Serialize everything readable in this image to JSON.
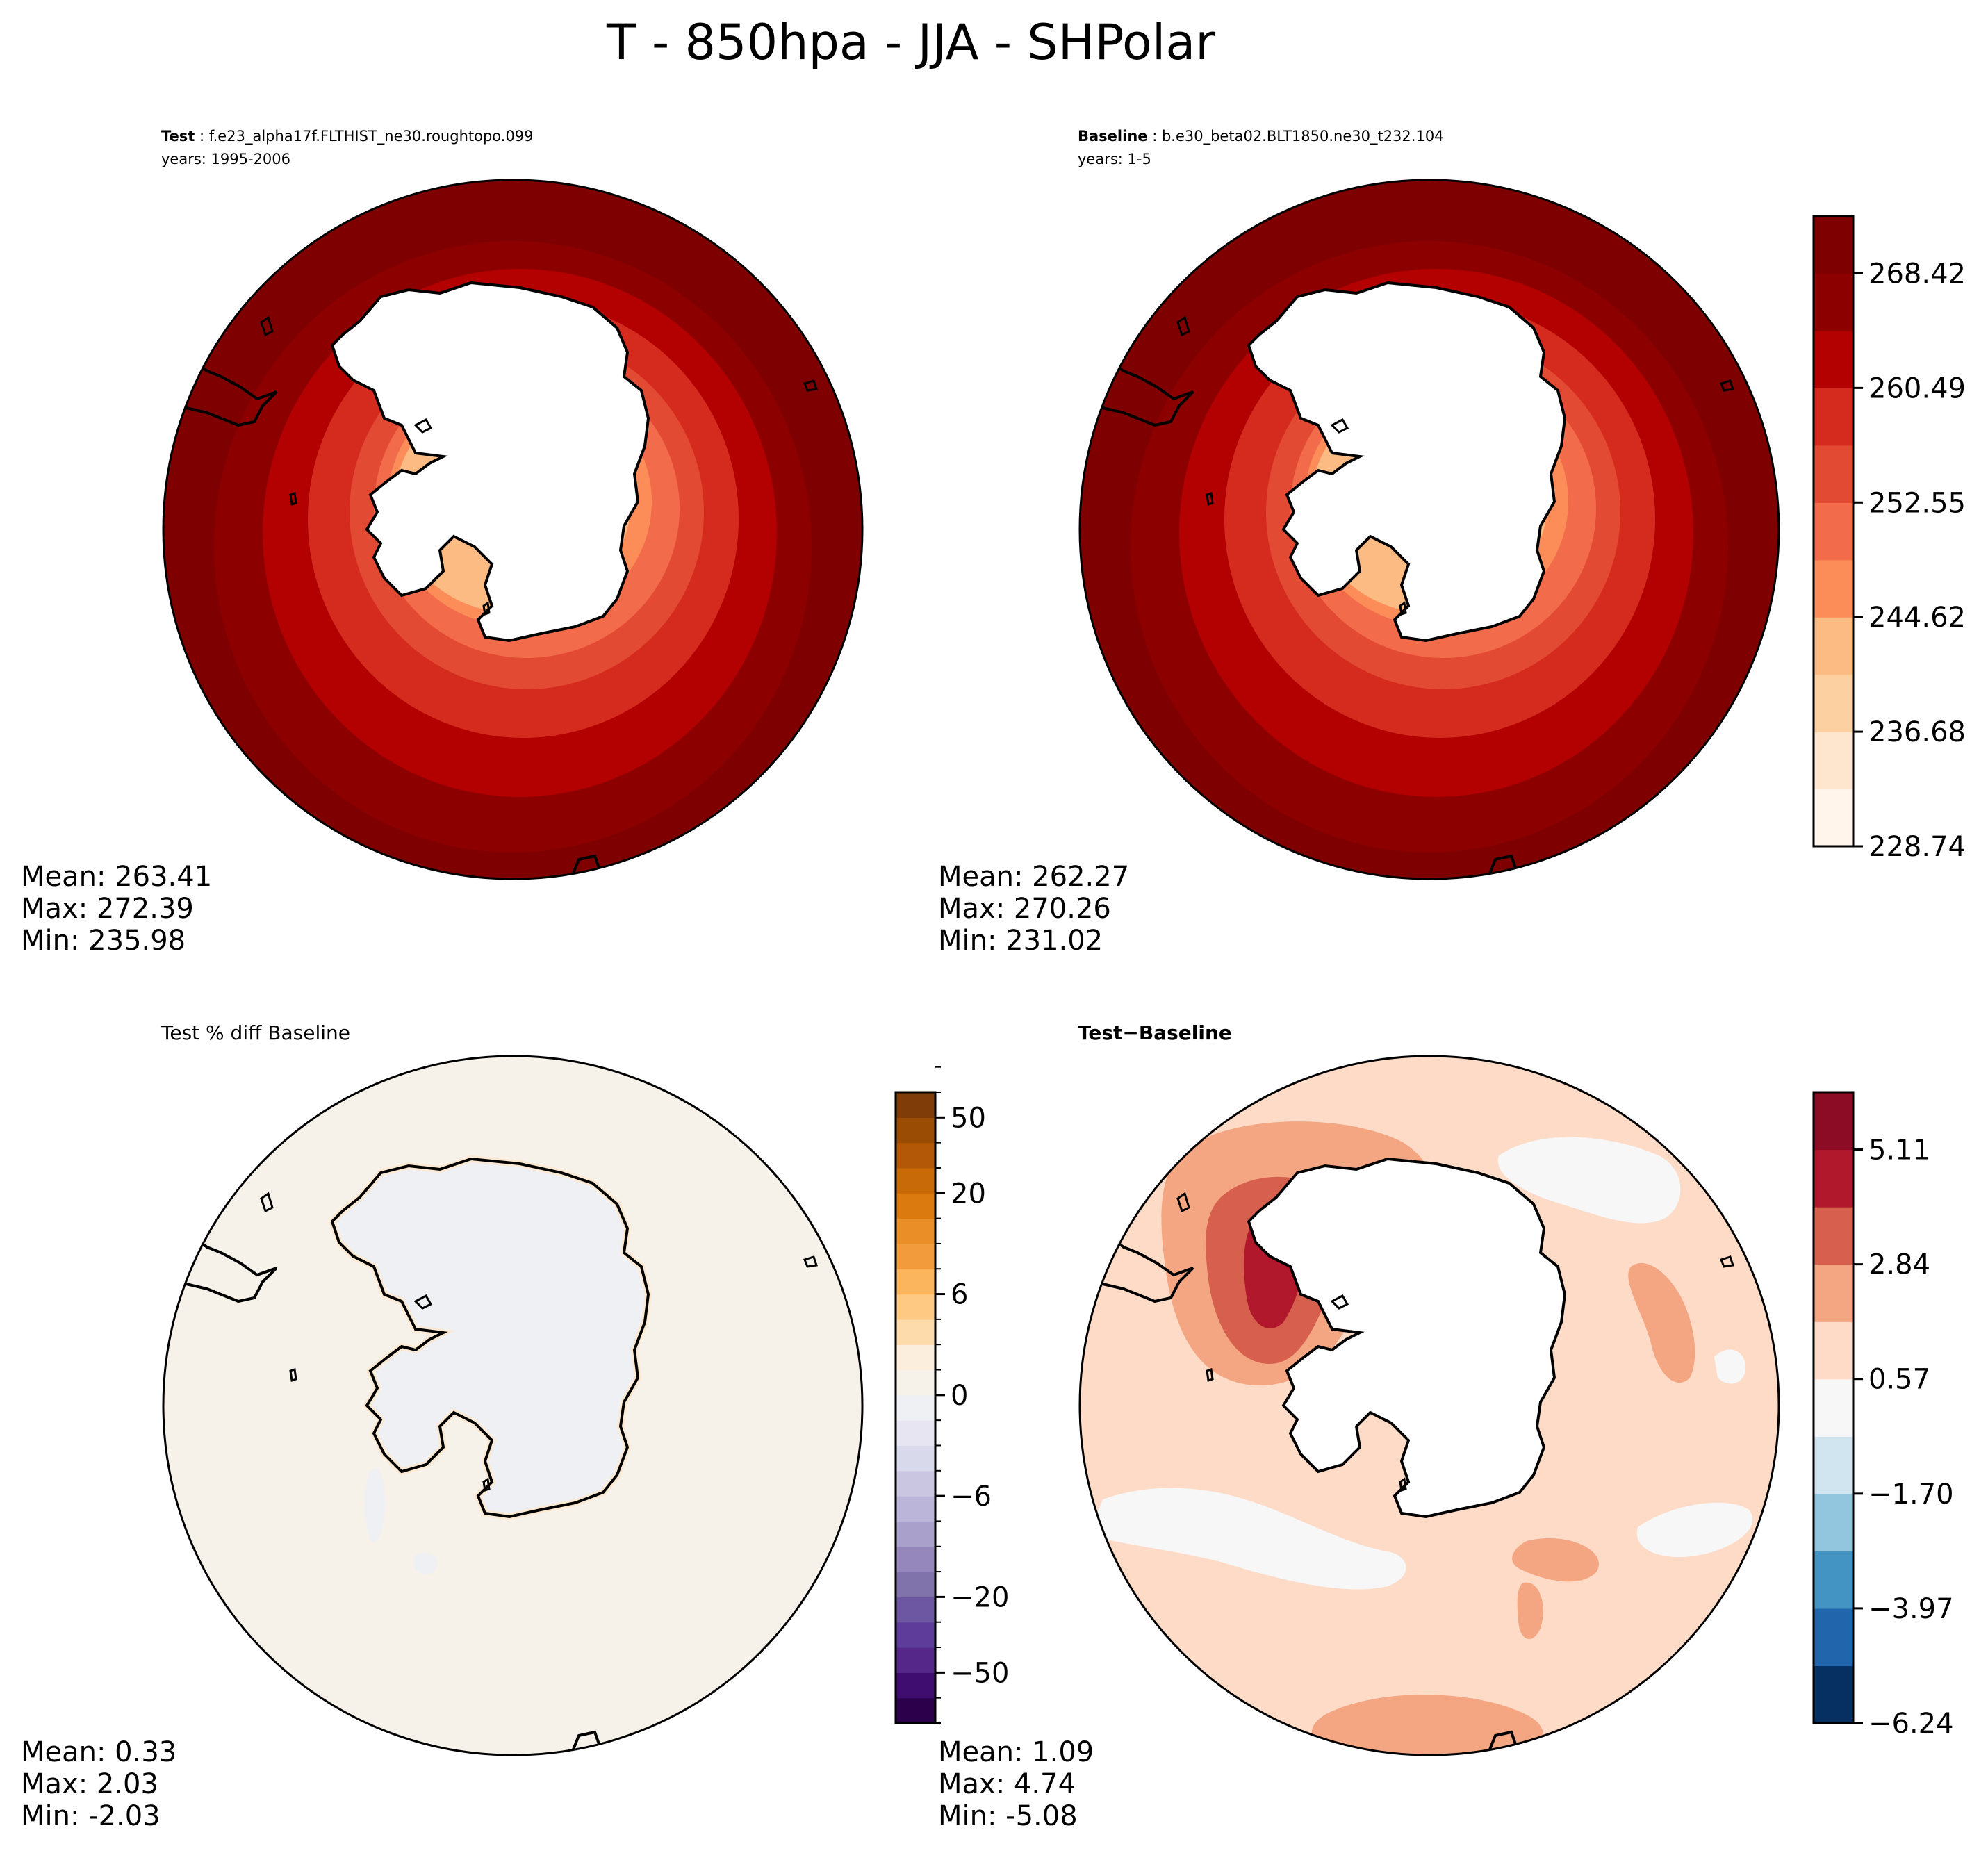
{
  "figure": {
    "suptitle": "T - 850hpa - JJA - SHPolar"
  },
  "panels": {
    "test": {
      "label": "Test",
      "case": "f.e23_alpha17f.FLTHIST_ne30.roughtopo.099",
      "years": "years: 1995-2006",
      "stats": [
        "Mean: 263.41",
        "Max: 272.39",
        "Min: 235.98"
      ]
    },
    "baseline": {
      "label": "Baseline",
      "case": "b.e30_beta02.BLT1850.ne30_t232.104",
      "years": "years: 1-5",
      "stats": [
        "Mean: 262.27",
        "Max: 270.26",
        "Min: 231.02"
      ]
    },
    "pctdiff": {
      "title": "Test % diff Baseline",
      "stats": [
        "Mean:  0.33",
        "Max:  2.03",
        "Min: -2.03"
      ]
    },
    "diff": {
      "title_a": "Test",
      "title_op": "−",
      "title_b": "Baseline",
      "stats": [
        "Mean:  1.09",
        "Max:  4.74",
        "Min: -5.08"
      ]
    }
  },
  "chart_data": [
    {
      "type": "heatmap",
      "id": "test",
      "projection": "south-polar-stereographic",
      "variable": "T",
      "level_hpa": 850,
      "season": "JJA",
      "colorbar": "shared-with-baseline",
      "ring_values_outer_to_inner": [
        271.5,
        266.4,
        262.5,
        258.5,
        254.5,
        250.6,
        246.6,
        242.6
      ],
      "mean": 263.41,
      "max": 272.39,
      "min": 235.98
    },
    {
      "type": "heatmap",
      "id": "baseline",
      "projection": "south-polar-stereographic",
      "variable": "T",
      "level_hpa": 850,
      "season": "JJA",
      "colorbar_levels": [
        228.74,
        232.71,
        236.68,
        240.65,
        244.62,
        248.58,
        252.55,
        256.52,
        260.49,
        264.45,
        268.42,
        272.39
      ],
      "colorbar_ticks": [
        228.74,
        236.68,
        244.62,
        252.55,
        260.49,
        268.42
      ],
      "colorbar_tick_labels": [
        "228.74",
        "236.68",
        "244.62",
        "252.55",
        "260.49",
        "268.42"
      ],
      "colors": [
        "#fff5eb",
        "#fee6ce",
        "#fdd0a2",
        "#fdbb84",
        "#fc8d59",
        "#f26b4b",
        "#e34a33",
        "#d52b1e",
        "#b30000",
        "#8c0000",
        "#7f0000"
      ],
      "ring_values_outer_to_inner": [
        270.3,
        265.5,
        261.5,
        257.5,
        253.5,
        249.5,
        245.6,
        241.6
      ],
      "mean": 262.27,
      "max": 270.26,
      "min": 231.02
    },
    {
      "type": "heatmap",
      "id": "pctdiff",
      "projection": "south-polar-stereographic",
      "colorbar_levels": [
        -100,
        -75,
        -50,
        -40,
        -30,
        -20,
        -15,
        -10,
        -8,
        -6,
        -4,
        -2,
        -1,
        0,
        1,
        2,
        4,
        6,
        8,
        10,
        15,
        20,
        30,
        40,
        50,
        75,
        100
      ],
      "colorbar_ticks": [
        -50,
        -20,
        -6,
        0,
        6,
        20,
        50
      ],
      "colorbar_tick_labels": [
        "−50",
        "−20",
        "−6",
        "0",
        "6",
        "20",
        "50"
      ],
      "colors_neg": [
        "#2d004b",
        "#3f0c70",
        "#542788",
        "#5e3c99",
        "#6d56a2",
        "#8073ac",
        "#9587bb",
        "#a9a0cc",
        "#bbb5d9",
        "#cac6e2",
        "#d8daeb",
        "#e6e5f1",
        "#eef0f4"
      ],
      "colors_pos": [
        "#f7f2e9",
        "#fbeedc",
        "#fddbab",
        "#fdc983",
        "#fbb55d",
        "#f29b3c",
        "#ea8f27",
        "#db7b0f",
        "#c86a08",
        "#b35806",
        "#9a4c05",
        "#7f3b08"
      ],
      "ocean_value": 0.4,
      "land_value": -0.3,
      "mean": 0.33,
      "max": 2.03,
      "min": -2.03
    },
    {
      "type": "heatmap",
      "id": "diff",
      "projection": "south-polar-stereographic",
      "colorbar_levels": [
        -6.24,
        -5.11,
        -3.97,
        -2.84,
        -1.7,
        -0.57,
        0.57,
        1.7,
        2.84,
        3.97,
        5.11,
        6.24
      ],
      "colorbar_ticks": [
        -6.24,
        -3.97,
        -1.7,
        0.57,
        2.84,
        5.11
      ],
      "colorbar_tick_labels": [
        "−6.24",
        "−3.97",
        "−1.70",
        "0.57",
        "2.84",
        "5.11"
      ],
      "colors": [
        "#053061",
        "#2166ac",
        "#4393c3",
        "#92c5de",
        "#d1e5f0",
        "#f7f7f7",
        "#fddbc7",
        "#f4a582",
        "#d6604d",
        "#b2182b",
        "#8b0c24"
      ],
      "regions": [
        {
          "value": 1.1,
          "label": "background"
        },
        {
          "value": 0.2,
          "label": "near-zero patches"
        },
        {
          "value": 2.3,
          "label": "moderate warm patches"
        },
        {
          "value": 3.4,
          "label": "strong warm lobe"
        },
        {
          "value": 4.5,
          "label": "peak warm core"
        }
      ],
      "mean": 1.09,
      "max": 4.74,
      "min": -5.08
    }
  ]
}
